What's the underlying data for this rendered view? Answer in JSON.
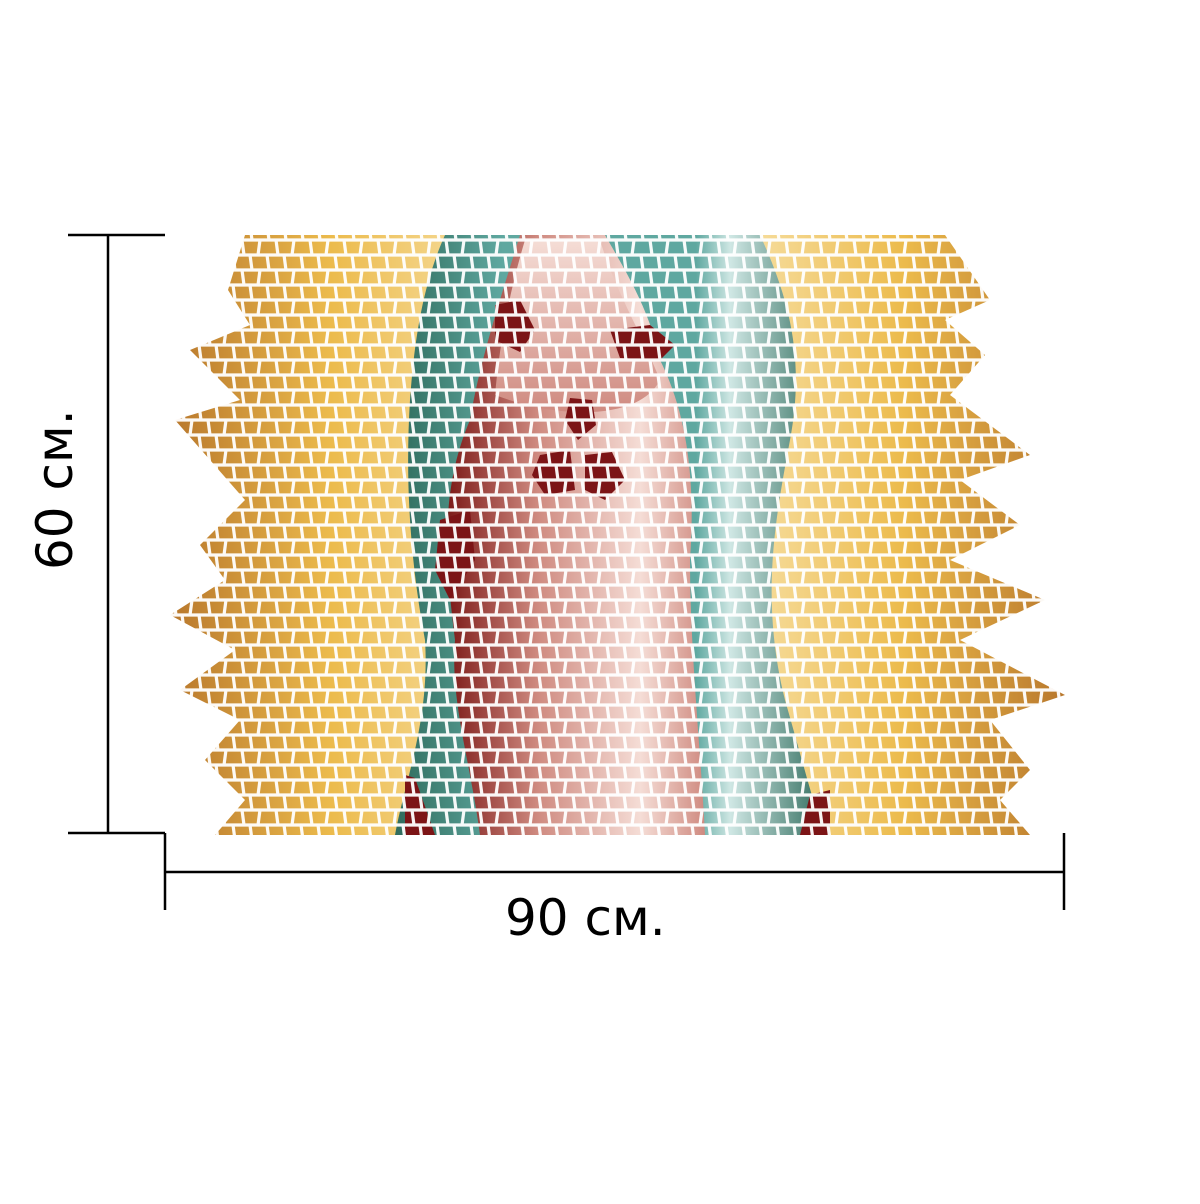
{
  "dimensions": {
    "width_label": "90 см.",
    "height_label": "60 см."
  },
  "artwork": {
    "subject": "mosaic-virgin-figure",
    "palette": {
      "halo_dark": "#b8772c",
      "halo_mid": "#ecbb4c",
      "halo_light": "#f7dfa2",
      "mantle_dark": "#2f6b5c",
      "mantle_mid": "#5fa8a0",
      "mantle_light": "#cfe7e4",
      "robe_dark": "#7c1a18",
      "robe_mid": "#cf8a80",
      "robe_light": "#f5ddd6",
      "accent_red": "#7c1416",
      "grout": "#ffffff",
      "line": "#000000"
    }
  }
}
